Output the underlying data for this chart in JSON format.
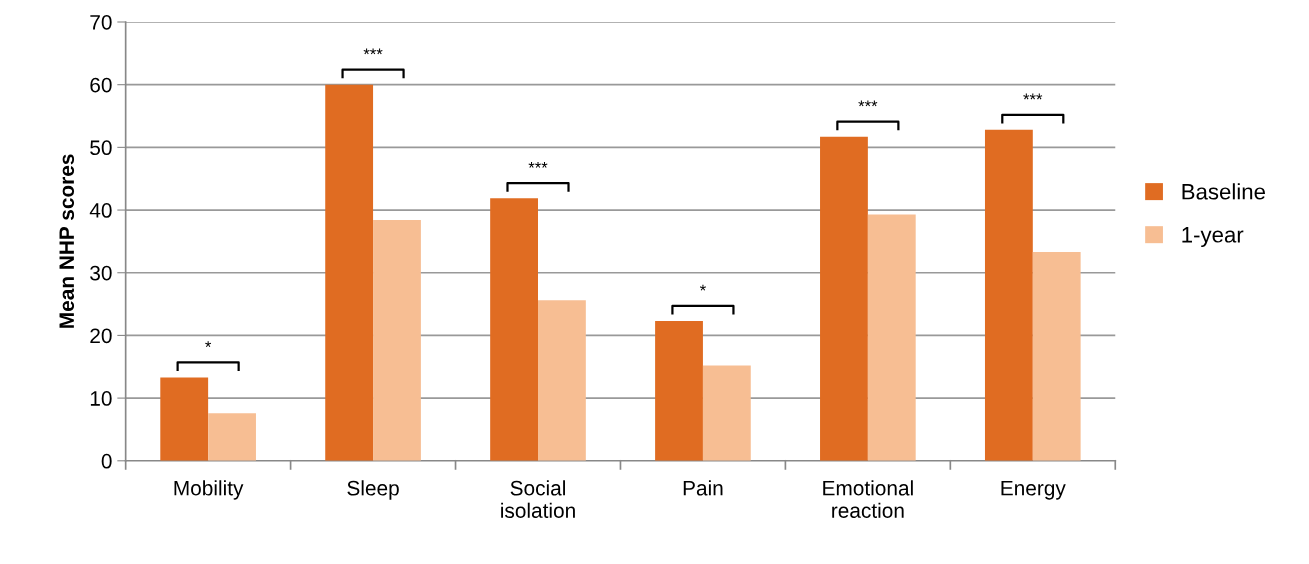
{
  "chart_data": {
    "type": "bar",
    "ylabel": "Mean NHP scores",
    "categories": [
      "Mobility",
      "Sleep",
      "Social\nisolation",
      "Pain",
      "Emotional\nreaction",
      "Energy"
    ],
    "series": [
      {
        "name": "Baseline",
        "color": "#e06c22",
        "values": [
          13.3,
          60.0,
          41.9,
          22.3,
          51.7,
          52.8
        ]
      },
      {
        "name": "1-year",
        "color": "#f7be93",
        "values": [
          7.6,
          38.4,
          25.6,
          15.2,
          39.3,
          33.3
        ]
      }
    ],
    "ylim": [
      0,
      70
    ],
    "yticks": [
      0,
      10,
      20,
      30,
      40,
      50,
      60,
      70
    ],
    "grid": "y",
    "legend": "right",
    "annotations": [
      {
        "text": "*",
        "x": "Mobility",
        "y": 13.3
      },
      {
        "text": "***",
        "x": "Sleep",
        "y": 60.0
      },
      {
        "text": "***",
        "x": "Social\nisolation",
        "y": 41.9
      },
      {
        "text": "*",
        "x": "Pain",
        "y": 22.3
      },
      {
        "text": "***",
        "x": "Emotional\nreaction",
        "y": 51.7
      },
      {
        "text": "***",
        "x": "Energy",
        "y": 52.8
      }
    ]
  }
}
